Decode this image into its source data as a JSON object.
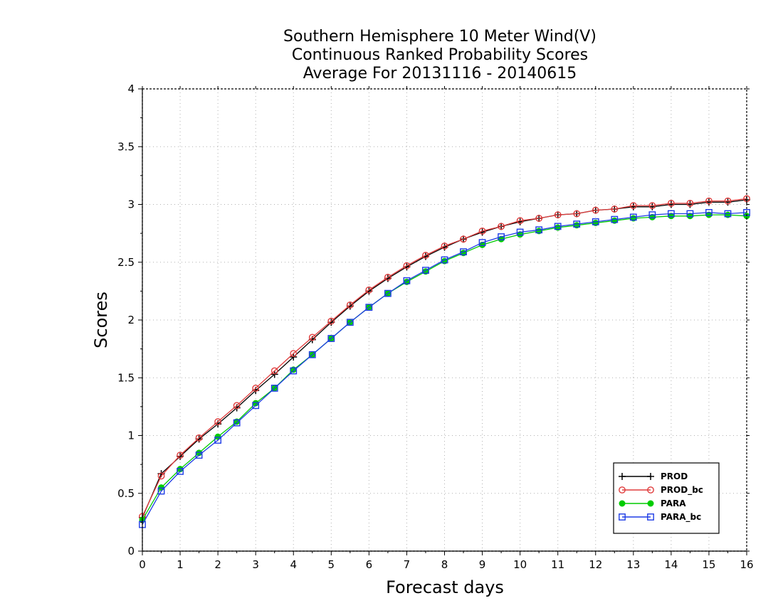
{
  "chart_data": {
    "type": "line",
    "title": [
      "Southern Hemisphere 10 Meter Wind(V)",
      "Continuous Ranked Probability Scores",
      "Average For 20131116 - 20140615"
    ],
    "xlabel": "Forecast days",
    "ylabel": "Scores",
    "xlim": [
      0,
      16
    ],
    "ylim": [
      0,
      4
    ],
    "xticks": [
      "0",
      "1",
      "2",
      "3",
      "4",
      "5",
      "6",
      "7",
      "8",
      "9",
      "10",
      "11",
      "12",
      "13",
      "14",
      "15",
      "16"
    ],
    "yticks": [
      "0",
      "0.5",
      "1",
      "1.5",
      "2",
      "2.5",
      "3",
      "3.5",
      "4"
    ],
    "grid": true,
    "legend_position": "bottom-right",
    "x": [
      0,
      0.5,
      1,
      1.5,
      2,
      2.5,
      3,
      3.5,
      4,
      4.5,
      5,
      5.5,
      6,
      6.5,
      7,
      7.5,
      8,
      8.5,
      9,
      9.5,
      10,
      10.5,
      11,
      11.5,
      12,
      12.5,
      13,
      13.5,
      14,
      14.5,
      15,
      15.5,
      16
    ],
    "series": [
      {
        "name": "PROD",
        "color": "#000000",
        "marker": "plus",
        "values": [
          0.29,
          0.67,
          0.82,
          0.97,
          1.1,
          1.24,
          1.39,
          1.53,
          1.68,
          1.83,
          1.98,
          2.12,
          2.25,
          2.36,
          2.46,
          2.55,
          2.63,
          2.7,
          2.76,
          2.81,
          2.85,
          2.88,
          2.91,
          2.92,
          2.95,
          2.96,
          2.98,
          2.98,
          3.0,
          3.0,
          3.02,
          3.02,
          3.04
        ]
      },
      {
        "name": "PROD_bc",
        "color": "#e03c3c",
        "marker": "open-circle",
        "values": [
          0.3,
          0.65,
          0.83,
          0.98,
          1.12,
          1.26,
          1.41,
          1.56,
          1.71,
          1.85,
          1.99,
          2.13,
          2.26,
          2.37,
          2.47,
          2.56,
          2.64,
          2.7,
          2.77,
          2.81,
          2.86,
          2.88,
          2.91,
          2.92,
          2.95,
          2.96,
          2.99,
          2.99,
          3.01,
          3.01,
          3.03,
          3.03,
          3.05
        ]
      },
      {
        "name": "PARA",
        "color": "#00cc00",
        "marker": "filled-circle",
        "values": [
          0.27,
          0.55,
          0.71,
          0.85,
          0.99,
          1.12,
          1.28,
          1.41,
          1.57,
          1.7,
          1.84,
          1.98,
          2.11,
          2.23,
          2.33,
          2.42,
          2.51,
          2.58,
          2.65,
          2.7,
          2.74,
          2.77,
          2.8,
          2.82,
          2.84,
          2.86,
          2.88,
          2.89,
          2.9,
          2.9,
          2.91,
          2.91,
          2.9
        ]
      },
      {
        "name": "PARA_bc",
        "color": "#1e3ce6",
        "marker": "open-square",
        "values": [
          0.23,
          0.52,
          0.69,
          0.83,
          0.96,
          1.11,
          1.26,
          1.41,
          1.56,
          1.7,
          1.84,
          1.98,
          2.11,
          2.23,
          2.34,
          2.43,
          2.52,
          2.59,
          2.67,
          2.72,
          2.76,
          2.78,
          2.81,
          2.83,
          2.85,
          2.87,
          2.89,
          2.91,
          2.92,
          2.92,
          2.93,
          2.92,
          2.93
        ]
      }
    ]
  }
}
